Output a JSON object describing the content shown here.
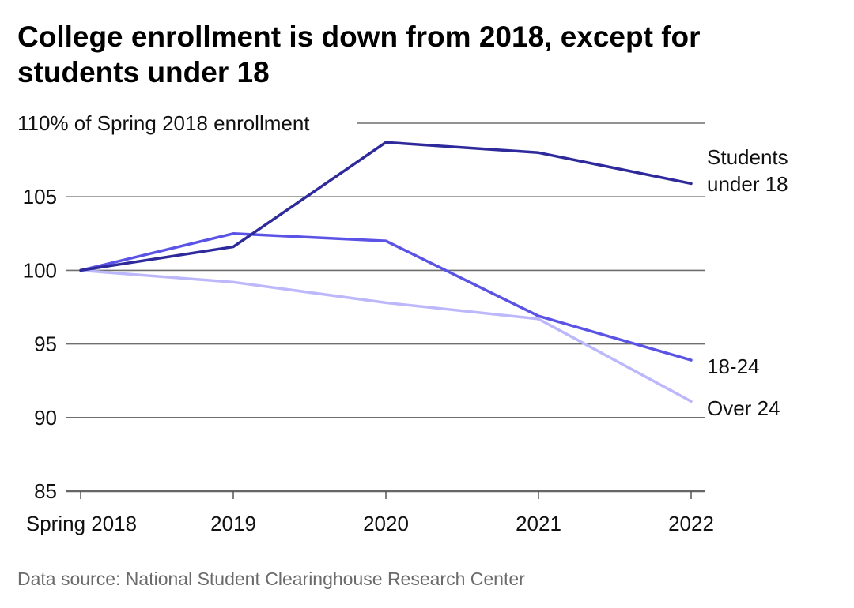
{
  "chart_data": {
    "type": "line",
    "title": "College enrollment is down from 2018, except for students under 18",
    "xlabel": "",
    "ylabel": "% of Spring 2018 enrollment",
    "x": [
      "Spring 2018",
      "2019",
      "2020",
      "2021",
      "2022"
    ],
    "ylim": [
      85,
      110
    ],
    "yticks": [
      85,
      90,
      95,
      100,
      105,
      110
    ],
    "ytick_labels": [
      "85",
      "90",
      "95",
      "100",
      "105",
      "110% of Spring 2018 enrollment"
    ],
    "grid": true,
    "legend": "direct labels at right",
    "series": [
      {
        "name": "Students under 18",
        "label_lines": [
          "Students",
          "under 18"
        ],
        "color": "#2e2a9b",
        "values": [
          100,
          101.6,
          108.7,
          108.0,
          105.9
        ]
      },
      {
        "name": "18-24",
        "label_lines": [
          "18-24"
        ],
        "color": "#5b53e6",
        "values": [
          100,
          102.5,
          102.0,
          96.9,
          93.9
        ]
      },
      {
        "name": "Over 24",
        "label_lines": [
          "Over 24"
        ],
        "color": "#bcb8fb",
        "values": [
          100,
          99.2,
          97.8,
          96.7,
          91.1
        ]
      }
    ]
  },
  "footer": {
    "source": "Data source: National Student Clearinghouse Research Center"
  }
}
